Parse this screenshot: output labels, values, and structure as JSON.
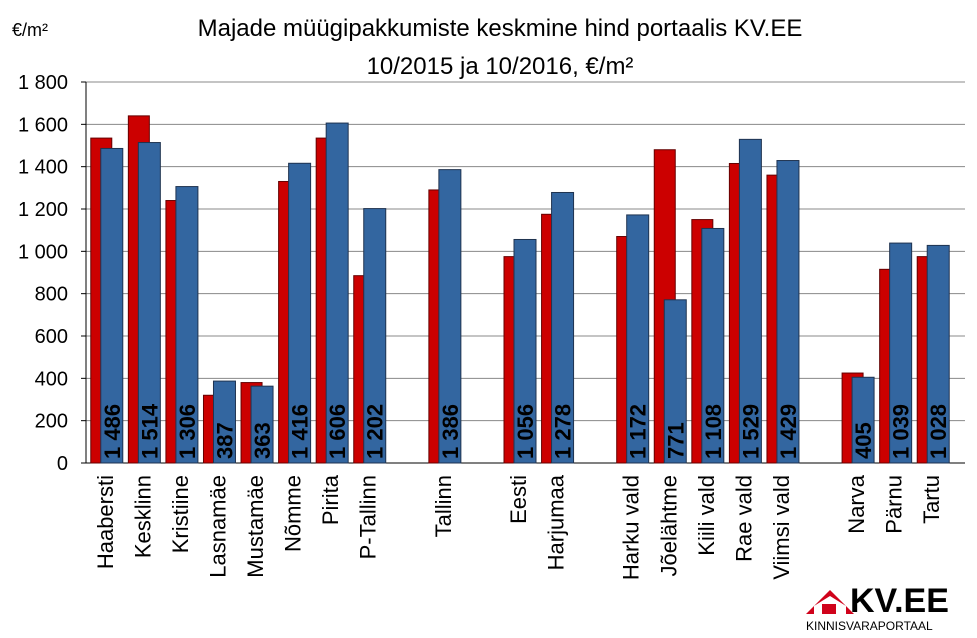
{
  "chart_data": {
    "type": "bar",
    "title": "Majade müügipakkumiste keskmine hind portaalis KV.EE",
    "subtitle": "10/2015 ja 10/2016, €/m²",
    "y_label": "€/m²",
    "categories": [
      "Haabersti",
      "Kesklinn",
      "Kristiine",
      "Lasnamäe",
      "Mustamäe",
      "Nõmme",
      "Pirita",
      "P-Tallinn",
      null,
      "Tallinn",
      null,
      "Eesti",
      "Harjumaa",
      null,
      "Harku vald",
      "Jõelähtme",
      "Kiili vald",
      "Rae vald",
      "Viimsi vald",
      null,
      "Narva",
      "Pärnu",
      "Tartu"
    ],
    "series": [
      {
        "color": "#cc0000",
        "values": [
          1535,
          1640,
          1240,
          320,
          380,
          1330,
          1535,
          885,
          null,
          1290,
          null,
          975,
          1175,
          null,
          1070,
          1480,
          1150,
          1415,
          1360,
          null,
          425,
          915,
          975
        ]
      },
      {
        "color": "#3366a0",
        "values": [
          1486,
          1514,
          1306,
          387,
          363,
          1416,
          1606,
          1202,
          null,
          1386,
          null,
          1056,
          1278,
          null,
          1172,
          771,
          1108,
          1529,
          1429,
          null,
          405,
          1039,
          1028
        ],
        "value_labels": [
          "1 486",
          "1 514",
          "1 306",
          "387",
          "363",
          "1 416",
          "1 606",
          "1 202",
          null,
          "1 386",
          null,
          "1 056",
          "1 278",
          null,
          "1 172",
          "771",
          "1 108",
          "1 529",
          "1 429",
          null,
          "405",
          "1 039",
          "1 028"
        ]
      }
    ],
    "ylim": [
      0,
      1800
    ],
    "yticks": [
      0,
      200,
      400,
      600,
      800,
      {
        "value": 1000,
        "label": "1 000"
      },
      {
        "value": 1200,
        "label": "1 200"
      },
      {
        "value": 1400,
        "label": "1 400"
      },
      {
        "value": 1600,
        "label": "1 600"
      },
      {
        "value": 1800,
        "label": "1 800"
      }
    ],
    "grid": true
  },
  "logo": {
    "name": "KV.EE",
    "tagline": "KINNISVARAPORTAAL"
  }
}
